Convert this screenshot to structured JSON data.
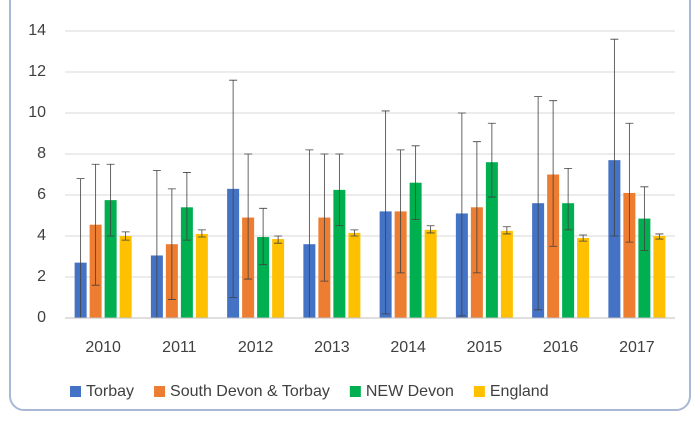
{
  "chart_data": {
    "type": "bar_errorbar",
    "categories": [
      "2010",
      "2011",
      "2012",
      "2013",
      "2014",
      "2015",
      "2016",
      "2017"
    ],
    "ylim": [
      0,
      14
    ],
    "yticks": [
      0,
      2,
      4,
      6,
      8,
      10,
      12,
      14
    ],
    "grid": true,
    "legend": "bottom",
    "series": [
      {
        "name": "Torbay",
        "color": "#4472c4",
        "values": [
          2.7,
          3.05,
          6.3,
          3.6,
          5.2,
          5.1,
          5.6,
          7.7
        ],
        "lower": [
          0,
          0,
          1.0,
          0,
          0.2,
          0.1,
          0.4,
          4.0
        ],
        "upper": [
          6.8,
          7.2,
          11.6,
          8.2,
          10.1,
          10.0,
          10.8,
          13.6
        ]
      },
      {
        "name": "South Devon & Torbay",
        "color": "#ed7d31",
        "values": [
          4.55,
          3.6,
          4.9,
          4.9,
          5.2,
          5.4,
          7.0,
          6.1
        ],
        "lower": [
          1.6,
          0.9,
          1.9,
          1.8,
          2.2,
          2.2,
          3.5,
          3.7
        ],
        "upper": [
          7.5,
          6.3,
          8.0,
          8.0,
          8.2,
          8.6,
          10.6,
          9.5
        ]
      },
      {
        "name": "NEW Devon",
        "color": "#00b050",
        "values": [
          5.75,
          5.4,
          3.95,
          6.25,
          6.6,
          7.6,
          5.6,
          4.85
        ],
        "lower": [
          4.0,
          3.8,
          2.6,
          4.5,
          4.8,
          5.9,
          4.3,
          3.3
        ],
        "upper": [
          7.5,
          7.1,
          5.35,
          8.0,
          8.4,
          9.5,
          7.3,
          6.4
        ]
      },
      {
        "name": "England",
        "color": "#ffc000",
        "values": [
          4.0,
          4.1,
          3.85,
          4.15,
          4.3,
          4.25,
          3.9,
          4.0
        ],
        "lower": [
          3.8,
          3.95,
          3.65,
          4.0,
          4.15,
          4.1,
          3.75,
          3.85
        ],
        "upper": [
          4.2,
          4.3,
          4.0,
          4.3,
          4.5,
          4.45,
          4.05,
          4.1
        ]
      }
    ]
  }
}
